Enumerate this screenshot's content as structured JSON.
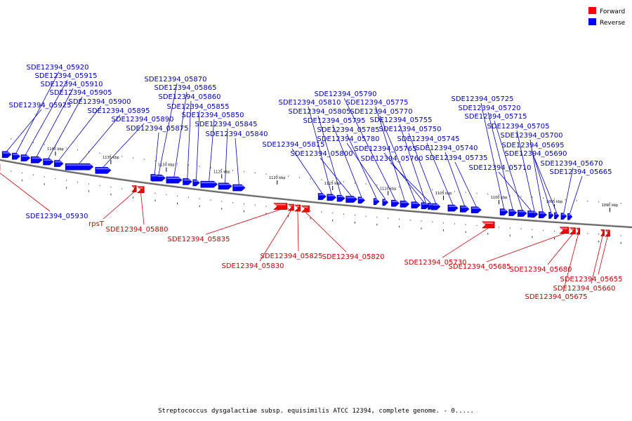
{
  "colors": {
    "forward": "#ff0000",
    "reverse": "#0000ff"
  },
  "legend": {
    "forward_label": "Forward",
    "reverse_label": "Reverse"
  },
  "footer": "Streptococcus dysgalactiae subsp. equisimilis ATCC 12394, complete genome. - 0.....",
  "scale": {
    "start_kbp": 1145,
    "end_kbp": 1088
  },
  "kbp_ticks": [
    "1140 kbp",
    "1135 kbp",
    "1130 kbp",
    "1125 kbp",
    "1120 kbp",
    "1115 kbp",
    "1110 kbp",
    "1105 kbp",
    "1100 kbp",
    "1095 kbp",
    "1090 kbp"
  ],
  "genes_top": [
    {
      "id": "SDE12394_05920",
      "start": 1143.9,
      "end": 1143.2
    },
    {
      "id": "SDE12394_05915",
      "start": 1143.1,
      "end": 1142.3
    },
    {
      "id": "SDE12394_05910",
      "start": 1142.2,
      "end": 1141.2
    },
    {
      "id": "SDE12394_05905",
      "start": 1141.1,
      "end": 1140.2
    },
    {
      "id": "SDE12394_05925",
      "start": 1144.8,
      "end": 1144.0
    },
    {
      "id": "SDE12394_05900",
      "start": 1140.1,
      "end": 1139.3
    },
    {
      "id": "SDE12394_05895",
      "start": 1139.1,
      "end": 1136.6
    },
    {
      "id": "SDE12394_05890",
      "start": 1136.4,
      "end": 1135.0
    },
    {
      "id": "SDE12394_05870",
      "start": 1131.3,
      "end": 1130.1
    },
    {
      "id": "SDE12394_05865",
      "start": 1130.0,
      "end": 1128.6
    },
    {
      "id": "SDE12394_05860",
      "start": 1128.5,
      "end": 1127.7
    },
    {
      "id": "SDE12394_05855",
      "start": 1127.6,
      "end": 1127.0
    },
    {
      "id": "SDE12394_05875",
      "start": 1131.4,
      "end": 1130.7
    },
    {
      "id": "SDE12394_05850",
      "start": 1126.9,
      "end": 1125.4
    },
    {
      "id": "SDE12394_05845",
      "start": 1125.3,
      "end": 1124.1
    },
    {
      "id": "SDE12394_05840",
      "start": 1124.0,
      "end": 1122.9
    },
    {
      "id": "SDE12394_05790",
      "start": 1109.7,
      "end": 1109.0
    },
    {
      "id": "SDE12394_05810",
      "start": 1115.5,
      "end": 1114.7
    },
    {
      "id": "SDE12394_05775",
      "start": 1108.9,
      "end": 1108.1
    },
    {
      "id": "SDE12394_05805",
      "start": 1114.6,
      "end": 1113.9
    },
    {
      "id": "SDE12394_05770",
      "start": 1107.9,
      "end": 1107.1
    },
    {
      "id": "SDE12394_05795",
      "start": 1112.7,
      "end": 1112.1
    },
    {
      "id": "SDE12394_05755",
      "start": 1106.9,
      "end": 1106.3
    },
    {
      "id": "SDE12394_05785",
      "start": 1111.3,
      "end": 1110.8
    },
    {
      "id": "SDE12394_05750",
      "start": 1106.1,
      "end": 1105.3
    },
    {
      "id": "SDE12394_05815",
      "start": 1116.3,
      "end": 1115.6
    },
    {
      "id": "SDE12394_05780",
      "start": 1110.5,
      "end": 1110.0
    },
    {
      "id": "SDE12394_05745",
      "start": 1104.6,
      "end": 1103.7
    },
    {
      "id": "SDE12394_05800",
      "start": 1113.8,
      "end": 1112.8
    },
    {
      "id": "SDE12394_05765",
      "start": 1107.0,
      "end": 1106.5
    },
    {
      "id": "SDE12394_05740",
      "start": 1103.5,
      "end": 1102.7
    },
    {
      "id": "SDE12394_05760",
      "start": 1106.4,
      "end": 1105.9
    },
    {
      "id": "SDE12394_05735",
      "start": 1102.5,
      "end": 1101.6
    },
    {
      "id": "SDE12394_05725",
      "start": 1099.9,
      "end": 1099.2
    },
    {
      "id": "SDE12394_05720",
      "start": 1099.1,
      "end": 1098.4
    },
    {
      "id": "SDE12394_05715",
      "start": 1098.3,
      "end": 1097.5
    },
    {
      "id": "SDE12394_05705",
      "start": 1097.1,
      "end": 1096.5
    },
    {
      "id": "SDE12394_05700",
      "start": 1096.4,
      "end": 1095.7
    },
    {
      "id": "SDE12394_05695",
      "start": 1095.5,
      "end": 1095.1
    },
    {
      "id": "SDE12394_05690",
      "start": 1095.0,
      "end": 1094.6
    },
    {
      "id": "SDE12394_05710",
      "start": 1097.4,
      "end": 1096.8
    },
    {
      "id": "SDE12394_05670",
      "start": 1094.4,
      "end": 1093.9
    },
    {
      "id": "SDE12394_05665",
      "start": 1093.8,
      "end": 1093.4
    }
  ],
  "genes_bottom": [
    {
      "id": "SDE12394_05930",
      "start": 1145.6,
      "end": 1145.0
    },
    {
      "id": "rpsT",
      "start": 1133.1,
      "end": 1132.7
    },
    {
      "id": "SDE12394_05880",
      "start": 1132.6,
      "end": 1132.0
    },
    {
      "id": "SDE12394_05835",
      "start": 1120.3,
      "end": 1119.1
    },
    {
      "id": "SDE12394_05830",
      "start": 1119.0,
      "end": 1118.5
    },
    {
      "id": "SDE12394_05825",
      "start": 1118.4,
      "end": 1117.9
    },
    {
      "id": "SDE12394_05820",
      "start": 1117.8,
      "end": 1117.1
    },
    {
      "id": "SDE12394_05730",
      "start": 1101.5,
      "end": 1100.4
    },
    {
      "id": "SDE12394_05685",
      "start": 1094.5,
      "end": 1093.7
    },
    {
      "id": "SDE12394_05680",
      "start": 1093.6,
      "end": 1093.1
    },
    {
      "id": "SDE12394_05675",
      "start": 1093.0,
      "end": 1092.7
    },
    {
      "id": "SDE12394_05655",
      "start": 1090.4,
      "end": 1090.0
    },
    {
      "id": "SDE12394_05660",
      "start": 1090.8,
      "end": 1090.5
    }
  ]
}
